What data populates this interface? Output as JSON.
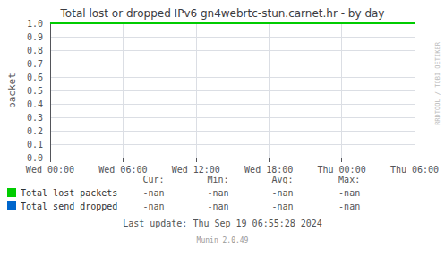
{
  "chart_data": {
    "type": "line",
    "title": "Total lost or dropped IPv6 gn4webrtc-stun.carnet.hr - by day",
    "ylabel": "packet",
    "categories": [
      "Wed 00:00",
      "Wed 06:00",
      "Wed 12:00",
      "Wed 18:00",
      "Thu 00:00",
      "Thu 06:00"
    ],
    "series": [
      {
        "name": "Total lost packets",
        "color": "#00cc00",
        "values": [
          1.0,
          1.0,
          1.0,
          1.0,
          1.0,
          1.0
        ],
        "stats": [
          "-nan",
          "-nan",
          "-nan",
          "-nan"
        ]
      },
      {
        "name": "Total send dropped",
        "color": "#0066cc",
        "values": [
          null,
          null,
          null,
          null,
          null,
          null
        ],
        "stats": [
          "-nan",
          "-nan",
          "-nan",
          "-nan"
        ]
      }
    ],
    "stats_headers": [
      "Cur:",
      "Min:",
      "Avg:",
      "Max:"
    ],
    "annotations": [
      "Last update: Thu Sep 19 06:55:28 2024",
      "Munin 2.0.49",
      "RRDTOOL / TOBI OETIKER"
    ],
    "ylim": [
      0.0,
      1.0
    ],
    "yticks": [
      {
        "value": 0.0,
        "label": "0.0"
      },
      0.1,
      0.2,
      0.3,
      0.4,
      0.5,
      0.6,
      0.7,
      0.8,
      0.9,
      {
        "value": 1.0,
        "label": "1.0"
      }
    ],
    "grid": true
  }
}
